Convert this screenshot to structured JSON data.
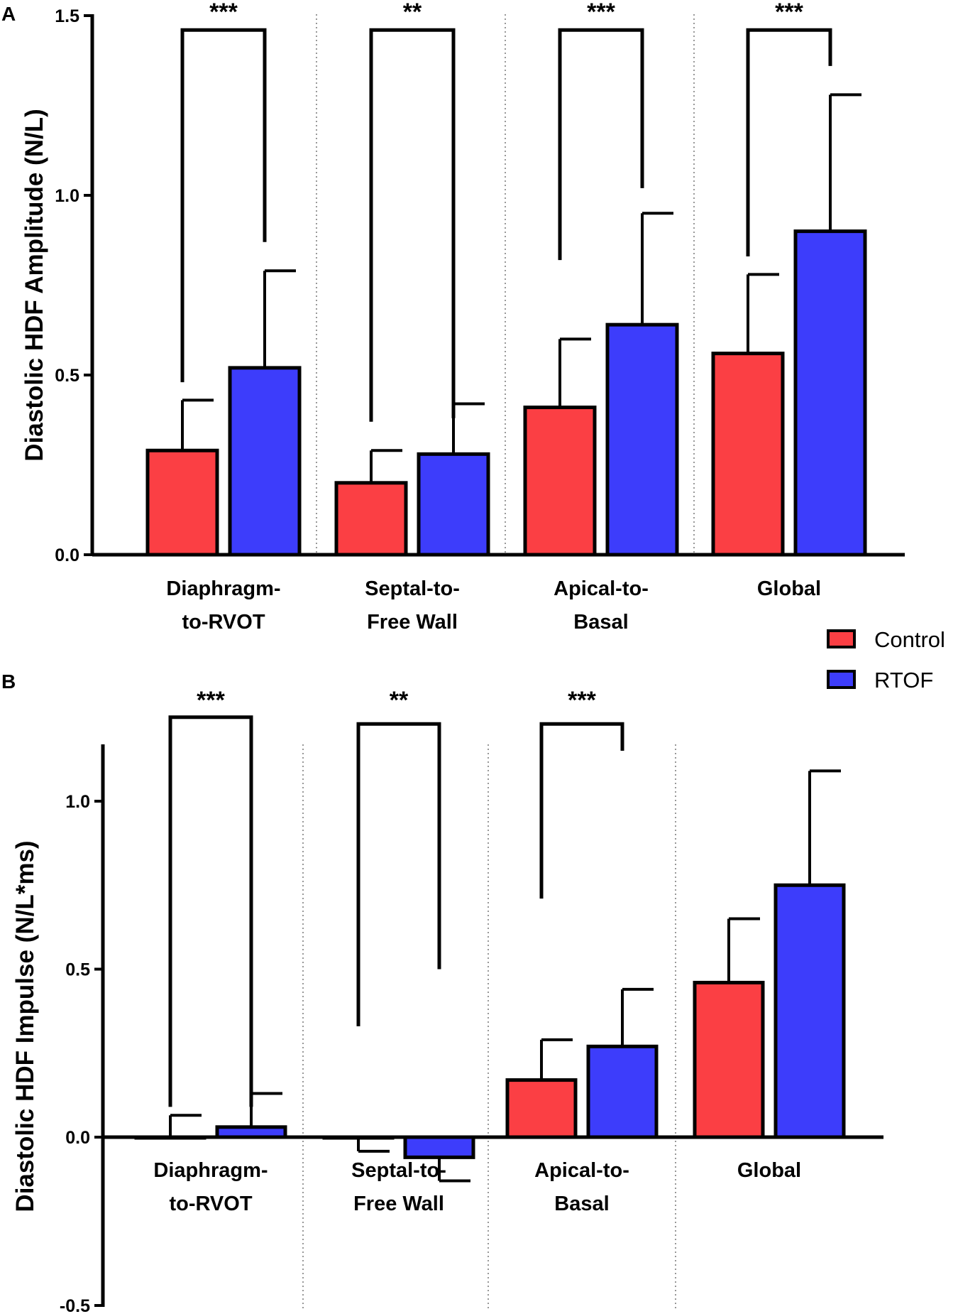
{
  "chart_data": [
    {
      "panel": "A",
      "type": "bar",
      "ylabel": "Diastolic HDF Amplitude (N/L)",
      "ylim": [
        0,
        1.5
      ],
      "yticks": [
        {
          "value": 0.0,
          "label": "0.0"
        },
        {
          "value": 0.5,
          "label": "0.5"
        },
        {
          "value": 1.0,
          "label": "1.0"
        },
        {
          "value": 1.5,
          "label": "1.5"
        }
      ],
      "categories": [
        {
          "line1": "Diaphragm-",
          "line2": "to-RVOT"
        },
        {
          "line1": "Septal-to-",
          "line2": "Free Wall"
        },
        {
          "line1": "Apical-to-",
          "line2": "Basal"
        },
        {
          "line1": "Global",
          "line2": ""
        }
      ],
      "series": [
        {
          "name": "Control",
          "color": "#fb3f44",
          "values": [
            0.29,
            0.2,
            0.41,
            0.56
          ],
          "errors": [
            0.14,
            0.09,
            0.19,
            0.22
          ]
        },
        {
          "name": "RTOF",
          "color": "#3d3dfb",
          "values": [
            0.52,
            0.28,
            0.64,
            0.9
          ],
          "errors": [
            0.27,
            0.14,
            0.31,
            0.38
          ]
        }
      ],
      "significance": [
        {
          "label": "***",
          "top": 1.46,
          "left_end": 0.48,
          "right_end": 0.87
        },
        {
          "label": "**",
          "top": 1.46,
          "left_end": 0.37,
          "right_end": 0.38
        },
        {
          "label": "***",
          "top": 1.46,
          "left_end": 0.82,
          "right_end": 1.02
        },
        {
          "label": "***",
          "top": 1.46,
          "left_end": 0.83,
          "right_end": 1.36
        }
      ]
    },
    {
      "panel": "B",
      "type": "bar",
      "ylabel": "Diastolic HDF Impulse (N/L*ms)",
      "ylim": [
        -0.5,
        1.1
      ],
      "yticks": [
        {
          "value": -0.5,
          "label": "-0.5"
        },
        {
          "value": 0.0,
          "label": "0.0"
        },
        {
          "value": 0.5,
          "label": "0.5"
        },
        {
          "value": 1.0,
          "label": "1.0"
        }
      ],
      "categories": [
        {
          "line1": "Diaphragm-",
          "line2": "to-RVOT"
        },
        {
          "line1": "Septal-to-",
          "line2": "Free Wall"
        },
        {
          "line1": "Apical-to-",
          "line2": "Basal"
        },
        {
          "line1": "Global",
          "line2": ""
        }
      ],
      "series": [
        {
          "name": "Control",
          "color": "#fb3f44",
          "values": [
            0.0,
            -0.002,
            0.17,
            0.46
          ],
          "errors": [
            0.065,
            0.04,
            0.12,
            0.19
          ]
        },
        {
          "name": "RTOF",
          "color": "#3d3dfb",
          "values": [
            0.03,
            -0.06,
            0.27,
            0.75
          ],
          "errors": [
            0.1,
            0.07,
            0.17,
            0.34
          ]
        }
      ],
      "significance": [
        {
          "label": "***",
          "top": 1.25,
          "left_end": 0.09,
          "right_end": 0.09
        },
        {
          "label": "**",
          "top": 1.23,
          "left_end": 0.33,
          "right_end": 0.5
        },
        {
          "label": "***",
          "top": 1.23,
          "left_end": 0.71,
          "right_end": 1.15
        }
      ]
    }
  ],
  "legend": [
    {
      "label": "Control",
      "color": "#fb3f44"
    },
    {
      "label": "RTOF",
      "color": "#3d3dfb"
    }
  ]
}
